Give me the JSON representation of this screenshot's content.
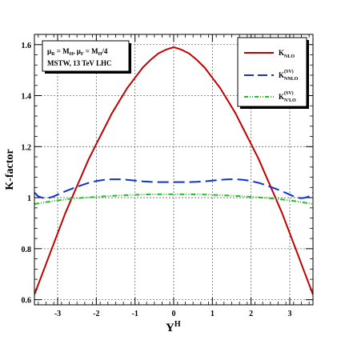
{
  "chart_data": {
    "type": "line",
    "xlabel": "Y",
    "xlabel_sup": "H",
    "ylabel": "K-factor",
    "xlim": [
      -3.6,
      3.6
    ],
    "ylim": [
      0.58,
      1.64
    ],
    "xticks": [
      -3,
      -2,
      -1,
      0,
      1,
      2,
      3
    ],
    "yticks": [
      0.6,
      0.8,
      1.0,
      1.2,
      1.4,
      1.6
    ],
    "ytick_labels": [
      "0.6",
      "0.8",
      "1",
      "1.2",
      "1.4",
      "1.6"
    ],
    "grid": true,
    "legend_position": "top-right",
    "info_box": {
      "line1": "μ_R = M_H,  μ_F = M_H/4",
      "line1_parts": [
        "μ",
        "R",
        " = M",
        "H",
        ",  μ",
        "F",
        " = M",
        "H",
        "/4"
      ],
      "line2": "MSTW, 13 TeV LHC"
    },
    "series": [
      {
        "name": "K_NLO",
        "label_main": "K",
        "label_sub": "NLO",
        "label_sup": "",
        "color": "#c00000",
        "style": "solid",
        "x": [
          -3.6,
          -3.4,
          -3.2,
          -3.0,
          -2.8,
          -2.6,
          -2.4,
          -2.2,
          -2.0,
          -1.8,
          -1.6,
          -1.4,
          -1.2,
          -1.0,
          -0.8,
          -0.6,
          -0.4,
          -0.2,
          0.0,
          0.2,
          0.4,
          0.6,
          0.8,
          1.0,
          1.2,
          1.4,
          1.6,
          1.8,
          2.0,
          2.2,
          2.4,
          2.6,
          2.8,
          3.0,
          3.2,
          3.4,
          3.6
        ],
        "y": [
          0.62,
          0.7,
          0.78,
          0.86,
          0.94,
          1.01,
          1.08,
          1.15,
          1.21,
          1.27,
          1.33,
          1.38,
          1.43,
          1.47,
          1.51,
          1.54,
          1.565,
          1.58,
          1.59,
          1.58,
          1.565,
          1.54,
          1.51,
          1.47,
          1.43,
          1.38,
          1.33,
          1.27,
          1.21,
          1.15,
          1.08,
          1.01,
          0.94,
          0.86,
          0.78,
          0.7,
          0.62
        ]
      },
      {
        "name": "K_NNLO^(SV)",
        "label_main": "K",
        "label_sub": "NNLO",
        "label_sup": "(SV)",
        "color": "#1030d0",
        "style": "dashed",
        "x": [
          -3.6,
          -3.5,
          -3.4,
          -3.3,
          -3.2,
          -3.1,
          -3.0,
          -2.8,
          -2.6,
          -2.4,
          -2.2,
          -2.0,
          -1.8,
          -1.6,
          -1.4,
          -1.2,
          -1.0,
          -0.8,
          -0.6,
          -0.4,
          -0.2,
          0.0,
          0.2,
          0.4,
          0.6,
          0.8,
          1.0,
          1.2,
          1.4,
          1.6,
          1.8,
          2.0,
          2.2,
          2.4,
          2.6,
          2.8,
          3.0,
          3.1,
          3.2,
          3.3,
          3.4,
          3.5,
          3.6
        ],
        "y": [
          1.02,
          1.005,
          1.0,
          0.998,
          1.0,
          1.005,
          1.012,
          1.025,
          1.037,
          1.048,
          1.058,
          1.065,
          1.07,
          1.072,
          1.072,
          1.07,
          1.067,
          1.064,
          1.062,
          1.061,
          1.061,
          1.061,
          1.061,
          1.061,
          1.062,
          1.064,
          1.067,
          1.07,
          1.072,
          1.072,
          1.07,
          1.065,
          1.058,
          1.048,
          1.037,
          1.025,
          1.012,
          1.005,
          1.0,
          0.998,
          1.0,
          1.005,
          1.02
        ]
      },
      {
        "name": "K_N'LO^(SV)",
        "label_main": "K",
        "label_sub": "N'LO",
        "label_sup": "(SV)",
        "color": "#20c020",
        "style": "dashdot",
        "x": [
          -3.6,
          -3.2,
          -2.8,
          -2.4,
          -2.0,
          -1.6,
          -1.2,
          -0.8,
          -0.4,
          0.0,
          0.4,
          0.8,
          1.2,
          1.6,
          2.0,
          2.4,
          2.8,
          3.2,
          3.6
        ],
        "y": [
          0.975,
          0.985,
          0.993,
          0.999,
          1.003,
          1.007,
          1.01,
          1.012,
          1.013,
          1.013,
          1.013,
          1.012,
          1.01,
          1.007,
          1.003,
          0.999,
          0.993,
          0.985,
          0.975
        ]
      }
    ]
  }
}
